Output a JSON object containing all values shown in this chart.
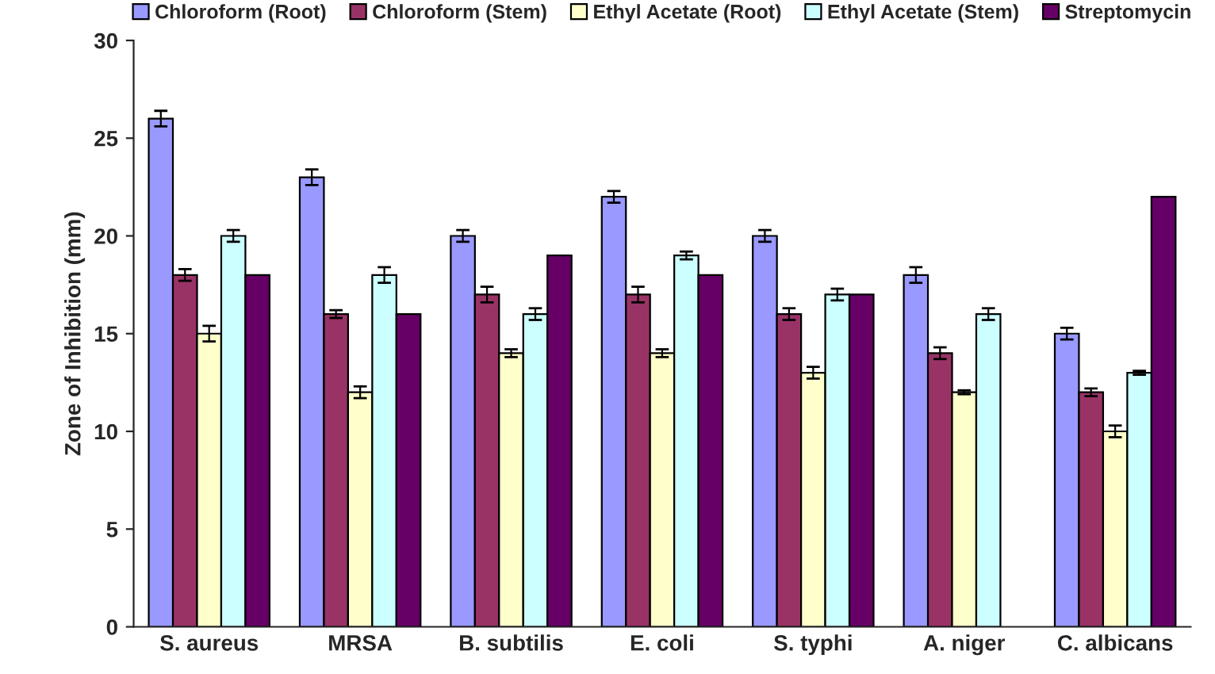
{
  "chart_data": {
    "type": "bar",
    "ylabel": "Zone of Inhibition (mm)",
    "categories": [
      "S. aureus",
      "MRSA",
      "B. subtilis",
      "E. coli",
      "S. typhi",
      "A. niger",
      "C. albicans"
    ],
    "series": [
      {
        "name": "Chloroform (Root)",
        "color": "#9999ff",
        "values": [
          26,
          23,
          20,
          22,
          20,
          18,
          15
        ],
        "errors": [
          0.4,
          0.4,
          0.3,
          0.3,
          0.3,
          0.4,
          0.3
        ]
      },
      {
        "name": "Chloroform (Stem)",
        "color": "#993366",
        "values": [
          18,
          16,
          17,
          17,
          16,
          14,
          12
        ],
        "errors": [
          0.3,
          0.2,
          0.4,
          0.4,
          0.3,
          0.3,
          0.2
        ]
      },
      {
        "name": "Ethyl Acetate (Root)",
        "color": "#ffffcc",
        "values": [
          15,
          12,
          14,
          14,
          13,
          12,
          10
        ],
        "errors": [
          0.4,
          0.3,
          0.2,
          0.2,
          0.3,
          0.1,
          0.3
        ]
      },
      {
        "name": "Ethyl Acetate (Stem)",
        "color": "#ccffff",
        "values": [
          20,
          18,
          16,
          19,
          17,
          16,
          13
        ],
        "errors": [
          0.3,
          0.4,
          0.3,
          0.2,
          0.3,
          0.3,
          0.1
        ]
      },
      {
        "name": "Streptomycin",
        "color": "#660066",
        "values": [
          18,
          16,
          19,
          18,
          17,
          null,
          22
        ]
      }
    ],
    "ylim": [
      0,
      30
    ],
    "yticks": [
      0,
      5,
      10,
      15,
      20,
      25,
      30
    ],
    "grid": false,
    "legend": "top"
  }
}
